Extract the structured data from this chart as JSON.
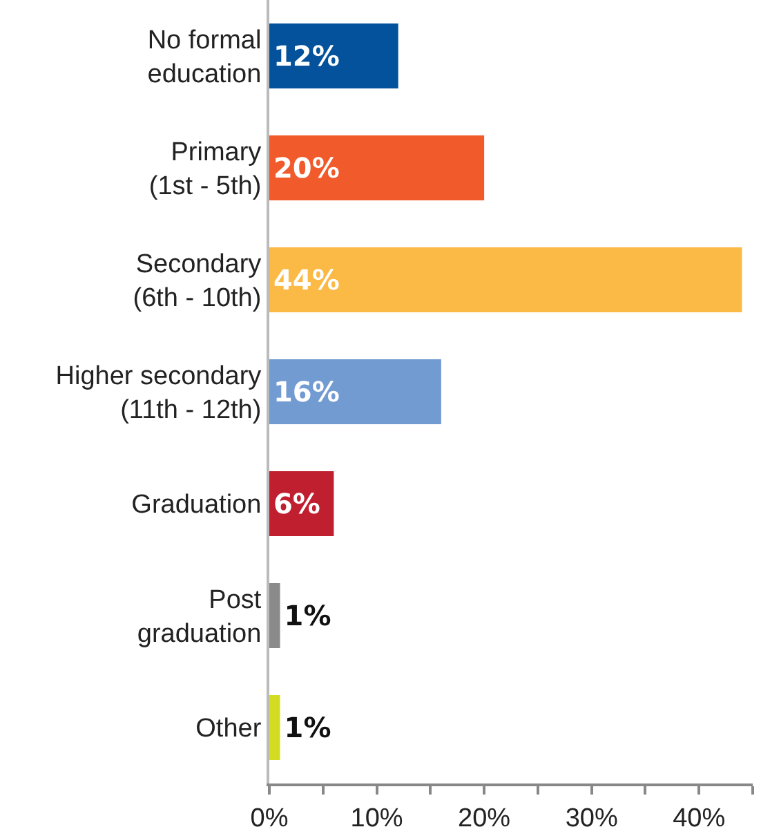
{
  "chart_data": {
    "type": "bar",
    "orientation": "horizontal",
    "categories": [
      "No formal\neducation",
      "Primary\n(1st - 5th)",
      "Secondary\n(6th - 10th)",
      "Higher secondary\n(11th - 12th)",
      "Graduation",
      "Post\ngraduation",
      "Other"
    ],
    "values": [
      12,
      20,
      44,
      16,
      6,
      1,
      1
    ],
    "value_labels": [
      "12%",
      "20%",
      "44%",
      "16%",
      "6%",
      "1%",
      "1%"
    ],
    "colors": [
      "#03529b",
      "#f15a2b",
      "#fbb945",
      "#729bd2",
      "#c01f2f",
      "#8a8a8a",
      "#d4dc22"
    ],
    "xlim": [
      0,
      45
    ],
    "xticks": [
      {
        "value": 0,
        "label": "0%"
      },
      {
        "value": 5,
        "label": null
      },
      {
        "value": 10,
        "label": "10%"
      },
      {
        "value": 15,
        "label": null
      },
      {
        "value": 20,
        "label": "20%"
      },
      {
        "value": 25,
        "label": null
      },
      {
        "value": 30,
        "label": "30%"
      },
      {
        "value": 35,
        "label": null
      },
      {
        "value": 40,
        "label": "40%"
      },
      {
        "value": 45,
        "label": null
      }
    ],
    "grid": false
  }
}
